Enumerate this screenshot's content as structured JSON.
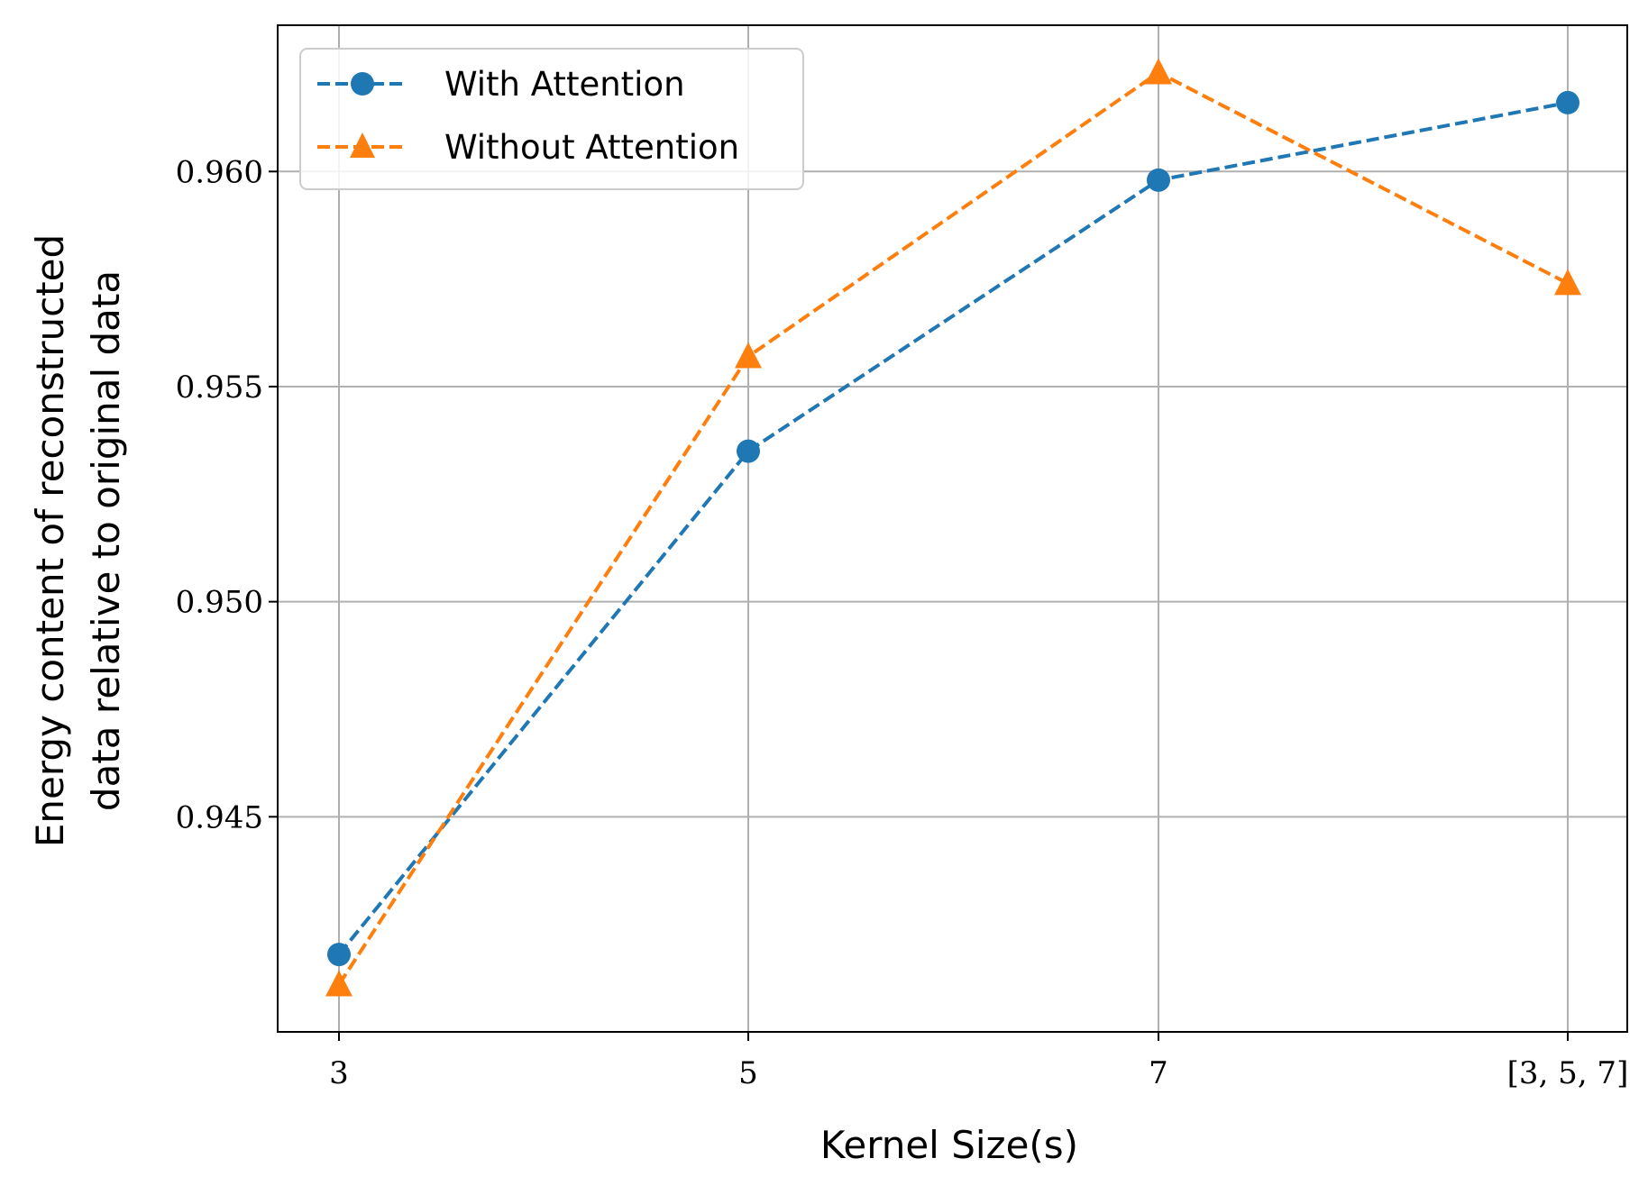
{
  "chart_data": {
    "type": "line",
    "categories": [
      "3",
      "5",
      "7",
      "[3, 5, 7]"
    ],
    "xlabel": "Kernel Size(s)",
    "ylabel_lines": [
      "Energy content of reconstructed",
      "data relative to original data"
    ],
    "ylim": [
      0.94,
      0.9634
    ],
    "yticks": [
      0.945,
      0.95,
      0.955,
      0.96
    ],
    "ytick_labels": [
      "0.945",
      "0.950",
      "0.955",
      "0.960"
    ],
    "grid": true,
    "legend_position": "upper-left",
    "series": [
      {
        "name": "With Attention",
        "color": "#1f77b4",
        "marker": "circle",
        "linestyle": "dashed",
        "values": [
          0.9418,
          0.9535,
          0.9598,
          0.9616
        ]
      },
      {
        "name": "Without Attention",
        "color": "#ff7f0e",
        "marker": "triangle",
        "linestyle": "dashed",
        "values": [
          0.9411,
          0.9557,
          0.9623,
          0.9574
        ]
      }
    ]
  }
}
